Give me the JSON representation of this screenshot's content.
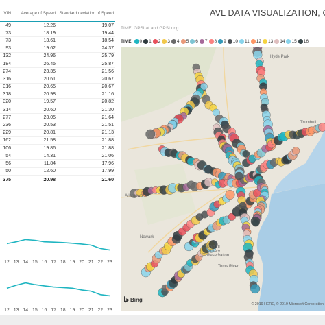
{
  "table": {
    "headers": [
      "VIN",
      "Average of Speed",
      "Standard deviation of Speed"
    ],
    "rows": [
      [
        "49",
        "12.26",
        "19.07"
      ],
      [
        "73",
        "18.19",
        "19.44"
      ],
      [
        "73",
        "13.61",
        "18.54"
      ],
      [
        "93",
        "19.62",
        "24.37"
      ],
      [
        "132",
        "24.96",
        "25.79"
      ],
      [
        "184",
        "26.45",
        "25.87"
      ],
      [
        "274",
        "23.35",
        "21.56"
      ],
      [
        "316",
        "20.61",
        "20.67"
      ],
      [
        "316",
        "20.65",
        "20.67"
      ],
      [
        "318",
        "20.98",
        "21.16"
      ],
      [
        "320",
        "19.57",
        "20.82"
      ],
      [
        "314",
        "20.60",
        "21.30"
      ],
      [
        "277",
        "23.05",
        "21.64"
      ],
      [
        "236",
        "20.53",
        "21.51"
      ],
      [
        "229",
        "20.81",
        "21.13"
      ],
      [
        "162",
        "21.58",
        "21.88"
      ],
      [
        "106",
        "19.86",
        "21.88"
      ],
      [
        "54",
        "14.31",
        "21.06"
      ],
      [
        "56",
        "11.84",
        "17.96"
      ],
      [
        "50",
        "12.60",
        "17.99"
      ]
    ],
    "total": [
      "375",
      "20.98",
      "21.60"
    ]
  },
  "line_chart_top": {
    "x_labels": [
      "12",
      "13",
      "14",
      "15",
      "16",
      "17",
      "18",
      "19",
      "20",
      "21",
      "22",
      "23"
    ],
    "values": [
      20.5,
      21.0,
      21.6,
      21.4,
      21.0,
      20.9,
      20.8,
      20.6,
      20.4,
      20.1,
      19.2,
      18.8
    ],
    "color": "#1fb5c1"
  },
  "line_chart_bottom": {
    "x_labels": [
      "12",
      "13",
      "14",
      "15",
      "16",
      "17",
      "18",
      "19",
      "20",
      "21",
      "22",
      "23"
    ],
    "values": [
      19.8,
      20.3,
      20.7,
      20.4,
      20.2,
      20.0,
      19.9,
      19.8,
      19.5,
      19.3,
      18.7,
      18.5
    ],
    "color": "#1fb5c1"
  },
  "title": "AVL DATA VISUALIZATION, CT",
  "subtitle": "TIME, GPSLat and GPSLong",
  "legend": {
    "label": "TIME",
    "items": [
      {
        "label": "0",
        "color": "#1fb5c1"
      },
      {
        "label": "1",
        "color": "#2f3a3e"
      },
      {
        "label": "2",
        "color": "#e8505b"
      },
      {
        "label": "3",
        "color": "#f1c84b"
      },
      {
        "label": "4",
        "color": "#6a6a6a"
      },
      {
        "label": "5",
        "color": "#e99a7a"
      },
      {
        "label": "6",
        "color": "#7ec5d3"
      },
      {
        "label": "7",
        "color": "#a66999"
      },
      {
        "label": "8",
        "color": "#fb8281"
      },
      {
        "label": "9",
        "color": "#3599b8"
      },
      {
        "label": "10",
        "color": "#4d5154"
      },
      {
        "label": "11",
        "color": "#8ad4eb"
      },
      {
        "label": "12",
        "color": "#fe9666"
      },
      {
        "label": "13",
        "color": "#f5d33f"
      },
      {
        "label": "14",
        "color": "#dfbfbf"
      },
      {
        "label": "15",
        "color": "#8ad4eb"
      },
      {
        "label": "16",
        "color": "#374649"
      }
    ]
  },
  "map": {
    "labels": [
      "Hyde Park",
      "Trumbull",
      "Allentown",
      "Newark",
      "Port Ol... Military Reservation",
      "Toms River"
    ],
    "bing": "Bing",
    "copyright": "© 2019 HERE, © 2019 Microsoft Corporation"
  }
}
